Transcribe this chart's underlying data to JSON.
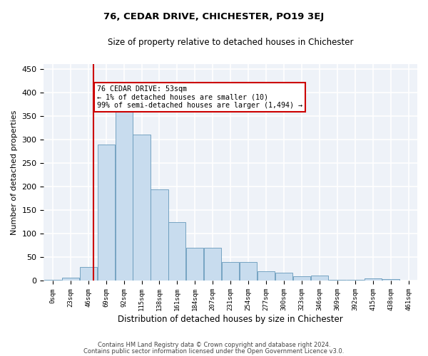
{
  "title": "76, CEDAR DRIVE, CHICHESTER, PO19 3EJ",
  "subtitle": "Size of property relative to detached houses in Chichester",
  "xlabel": "Distribution of detached houses by size in Chichester",
  "ylabel": "Number of detached properties",
  "bar_color": "#c8dcee",
  "bar_edge_color": "#6699bb",
  "background_color": "#eef2f8",
  "grid_color": "#ffffff",
  "annotation_box_color": "#cc0000",
  "vline_color": "#cc0000",
  "vline_x": 2.3,
  "annotation_title": "76 CEDAR DRIVE: 53sqm",
  "annotation_line1": "← 1% of detached houses are smaller (10)",
  "annotation_line2": "99% of semi-detached houses are larger (1,494) →",
  "bins_left": [
    0,
    1,
    2,
    3,
    4,
    5,
    6,
    7,
    8,
    9,
    10,
    11,
    12,
    13,
    14,
    15,
    16,
    17,
    18,
    19,
    20
  ],
  "counts": [
    2,
    7,
    30,
    290,
    360,
    310,
    195,
    125,
    70,
    70,
    40,
    40,
    20,
    18,
    10,
    12,
    2,
    2,
    5,
    3,
    1
  ],
  "tick_labels": [
    "0sqm",
    "23sqm",
    "46sqm",
    "69sqm",
    "92sqm",
    "115sqm",
    "138sqm",
    "161sqm",
    "184sqm",
    "207sqm",
    "231sqm",
    "254sqm",
    "277sqm",
    "300sqm",
    "323sqm",
    "346sqm",
    "369sqm",
    "392sqm",
    "415sqm",
    "438sqm",
    "461sqm"
  ],
  "ylim": [
    0,
    460
  ],
  "yticks": [
    0,
    50,
    100,
    150,
    200,
    250,
    300,
    350,
    400,
    450
  ],
  "footer1": "Contains HM Land Registry data © Crown copyright and database right 2024.",
  "footer2": "Contains public sector information licensed under the Open Government Licence v3.0."
}
